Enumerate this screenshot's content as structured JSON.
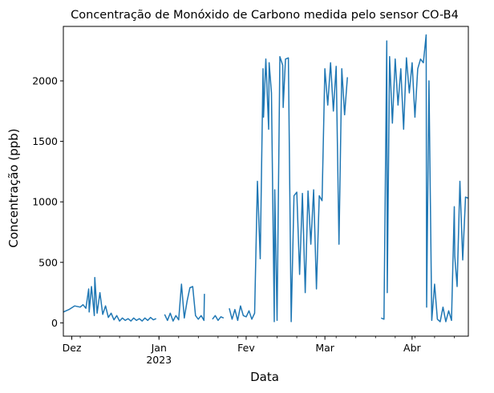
{
  "chart_data": {
    "type": "line",
    "title": "Concentração de Monóxido de Carbono medida pelo sensor CO-B4",
    "xlabel": "Data",
    "ylabel": "Concentração (ppb)",
    "ylim": [
      -110,
      2450
    ],
    "yticks": [
      0,
      500,
      1000,
      1500,
      2000
    ],
    "xlim": [
      "2022-11-28",
      "2023-04-21"
    ],
    "xticks": [
      {
        "date": "2022-12-01",
        "label": "Dez",
        "sublabel": ""
      },
      {
        "date": "2023-01-01",
        "label": "Jan",
        "sublabel": "2023"
      },
      {
        "date": "2023-02-01",
        "label": "Fev",
        "sublabel": ""
      },
      {
        "date": "2023-03-01",
        "label": "Mar",
        "sublabel": ""
      },
      {
        "date": "2023-04-01",
        "label": "Abr",
        "sublabel": ""
      }
    ],
    "grid": false,
    "legend": "none",
    "color": "#1f77b4",
    "series": [
      {
        "segments": [
          {
            "x": [
              "2022-11-28",
              "2022-11-30",
              "2022-12-02",
              "2022-12-04",
              "2022-12-05",
              "2022-12-06",
              "2022-12-07",
              "2022-12-07",
              "2022-12-08",
              "2022-12-09",
              "2022-12-09",
              "2022-12-10",
              "2022-12-11",
              "2022-12-12",
              "2022-12-13",
              "2022-12-14",
              "2022-12-15",
              "2022-12-16",
              "2022-12-17",
              "2022-12-18",
              "2022-12-19",
              "2022-12-20",
              "2022-12-21",
              "2022-12-22",
              "2022-12-23",
              "2022-12-24",
              "2022-12-25",
              "2022-12-26",
              "2022-12-27",
              "2022-12-28",
              "2022-12-29",
              "2022-12-30",
              "2022-12-31"
            ],
            "y": [
              90,
              110,
              140,
              130,
              150,
              120,
              280,
              90,
              300,
              60,
              375,
              80,
              250,
              70,
              140,
              45,
              80,
              25,
              60,
              15,
              40,
              20,
              35,
              15,
              40,
              20,
              35,
              15,
              40,
              20,
              45,
              25,
              35
            ]
          },
          {
            "x": [
              "2023-01-03",
              "2023-01-04",
              "2023-01-05",
              "2023-01-06",
              "2023-01-07",
              "2023-01-08",
              "2023-01-09",
              "2023-01-10",
              "2023-01-11",
              "2023-01-12",
              "2023-01-13",
              "2023-01-14",
              "2023-01-15",
              "2023-01-16",
              "2023-01-17",
              "2023-01-17"
            ],
            "y": [
              70,
              20,
              80,
              15,
              60,
              25,
              320,
              40,
              180,
              290,
              300,
              60,
              30,
              60,
              20,
              240
            ]
          },
          {
            "x": [
              "2023-01-20",
              "2023-01-21",
              "2023-01-22",
              "2023-01-23",
              "2023-01-24"
            ],
            "y": [
              30,
              60,
              20,
              50,
              40
            ]
          },
          {
            "x": [
              "2023-01-26",
              "2023-01-27",
              "2023-01-28",
              "2023-01-29",
              "2023-01-30",
              "2023-01-31",
              "2023-02-01",
              "2023-02-02",
              "2023-02-03",
              "2023-02-04",
              "2023-02-05",
              "2023-02-06",
              "2023-02-07",
              "2023-02-07",
              "2023-02-08",
              "2023-02-09",
              "2023-02-09",
              "2023-02-10",
              "2023-02-11",
              "2023-02-11",
              "2023-02-12",
              "2023-02-13",
              "2023-02-14",
              "2023-02-14",
              "2023-02-15",
              "2023-02-16",
              "2023-02-17",
              "2023-02-18",
              "2023-02-19",
              "2023-02-20",
              "2023-02-21",
              "2023-02-22",
              "2023-02-23",
              "2023-02-24",
              "2023-02-25",
              "2023-02-26",
              "2023-02-27",
              "2023-02-28",
              "2023-03-01",
              "2023-03-02",
              "2023-03-03",
              "2023-03-04",
              "2023-03-05",
              "2023-03-06",
              "2023-03-07",
              "2023-03-08",
              "2023-03-09"
            ],
            "y": [
              120,
              30,
              110,
              20,
              140,
              60,
              50,
              100,
              30,
              80,
              1170,
              530,
              2100,
              1700,
              2180,
              1600,
              2150,
              1900,
              10,
              1100,
              20,
              2200,
              2130,
              1780,
              2180,
              2190,
              10,
              1050,
              1080,
              400,
              1070,
              250,
              1090,
              650,
              1100,
              280,
              1050,
              1010,
              2100,
              1800,
              2150,
              1750,
              2120,
              650,
              2100,
              1720,
              2030
            ]
          },
          {
            "x": [
              "2023-03-21",
              "2023-03-22",
              "2023-03-23",
              "2023-03-23",
              "2023-03-24",
              "2023-03-25",
              "2023-03-26",
              "2023-03-27",
              "2023-03-28",
              "2023-03-29",
              "2023-03-30",
              "2023-03-31",
              "2023-04-01",
              "2023-04-02",
              "2023-04-03",
              "2023-04-04",
              "2023-04-05",
              "2023-04-06",
              "2023-04-06",
              "2023-04-07",
              "2023-04-08",
              "2023-04-09",
              "2023-04-10",
              "2023-04-11",
              "2023-04-12",
              "2023-04-13",
              "2023-04-14",
              "2023-04-15",
              "2023-04-16",
              "2023-04-16",
              "2023-04-17",
              "2023-04-18",
              "2023-04-19",
              "2023-04-20",
              "2023-04-21"
            ],
            "y": [
              40,
              30,
              2330,
              250,
              2200,
              1650,
              2180,
              1800,
              2100,
              1600,
              2190,
              1900,
              2150,
              1700,
              2100,
              2180,
              2150,
              2380,
              130,
              2000,
              20,
              320,
              30,
              10,
              130,
              10,
              100,
              20,
              960,
              550,
              300,
              1170,
              520,
              1040,
              1030
            ]
          }
        ]
      }
    ]
  }
}
